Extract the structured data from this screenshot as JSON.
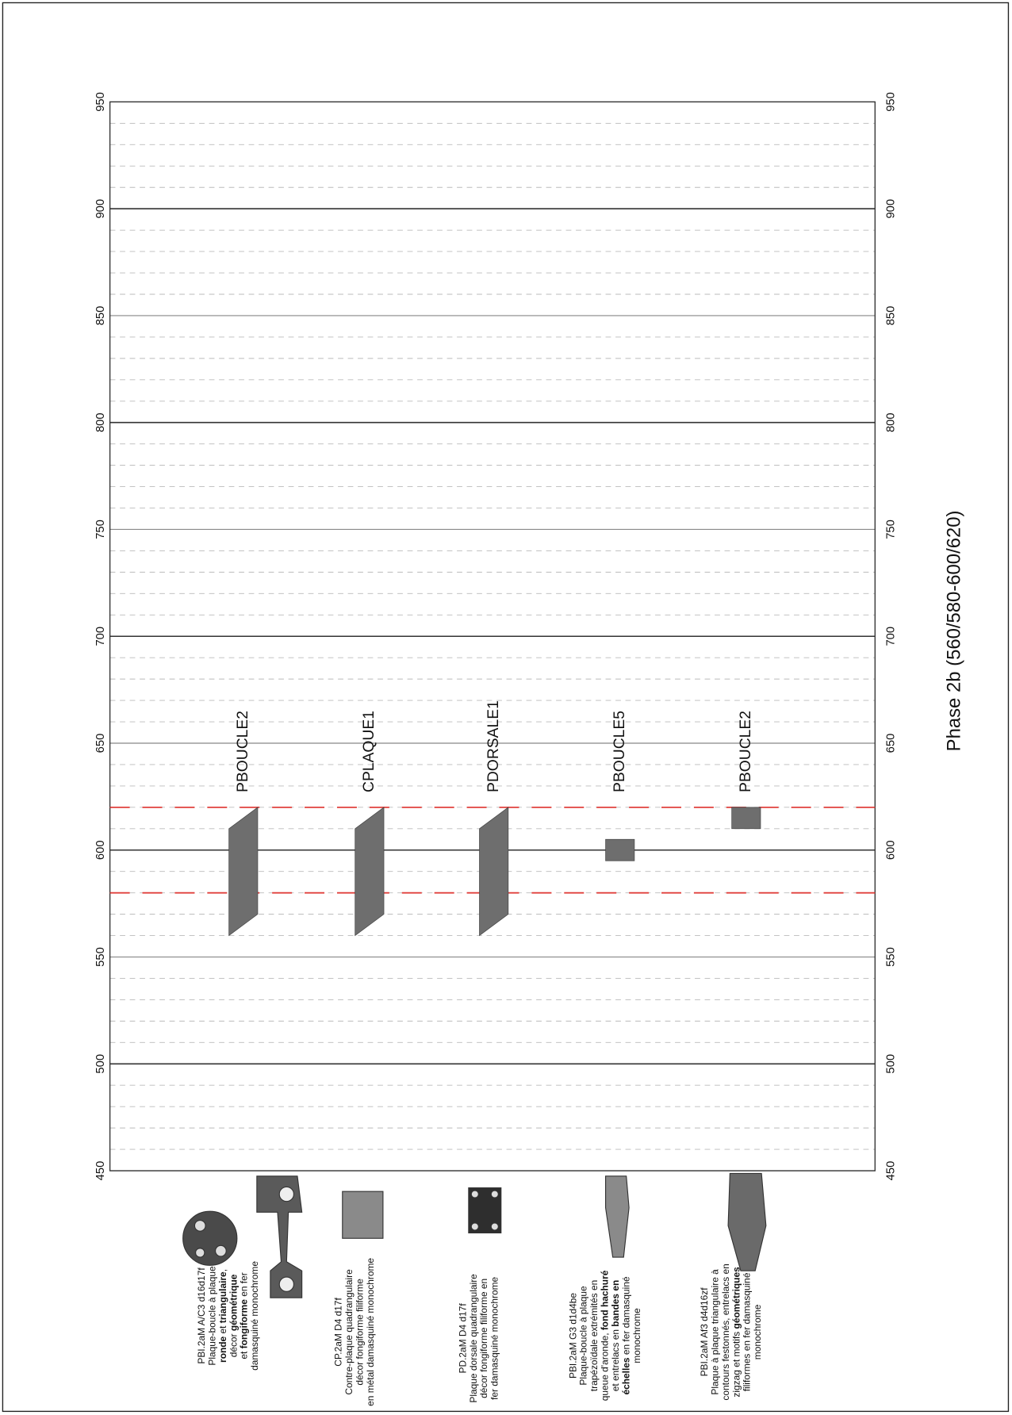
{
  "chart_data": {
    "type": "range",
    "title": "Phase 2b (560/580-600/620)",
    "ylim": [
      450,
      950
    ],
    "yticks": [
      450,
      500,
      550,
      600,
      650,
      700,
      750,
      800,
      850,
      900,
      950
    ],
    "major_step": 100,
    "minor_step": 10,
    "color": "#6e6e6e",
    "reference_lines": [
      {
        "value": 580,
        "color": "#e0403c"
      },
      {
        "value": 620,
        "color": "#e0403c"
      }
    ],
    "items": [
      {
        "name": "PBOUCLE2",
        "low": [
          560,
          570
        ],
        "high": [
          610,
          620
        ],
        "description": [
          [
            "PBI.2aM A/C3 d16d17f"
          ],
          [
            "Plaque-boucle à plaque"
          ],
          [
            {
              "text": "ronde",
              "bold": true
            },
            " et ",
            {
              "text": "triangulaire",
              "bold": true
            },
            ","
          ],
          [
            "décor ",
            {
              "text": "géométrique",
              "bold": true
            }
          ],
          [
            "et ",
            {
              "text": "fongiforme",
              "bold": true
            },
            " en fer"
          ],
          [
            "damasquiné monochrome"
          ]
        ]
      },
      {
        "name": "CPLAQUE1",
        "low": [
          560,
          570
        ],
        "high": [
          610,
          620
        ],
        "description": [
          [
            "CP.2aM D4 d17f"
          ],
          [
            "Contre-plaque quadrangulaire"
          ],
          [
            "décor fongiforme filiforme"
          ],
          [
            "en métal damasquiné monochrome"
          ]
        ]
      },
      {
        "name": "PDORSALE1",
        "low": [
          560,
          570
        ],
        "high": [
          610,
          620
        ],
        "description": [
          [
            "PD.2aM D4 d17f"
          ],
          [
            "Plaque dorsale quadrangulaire"
          ],
          [
            "décor fongiforme filiforme en"
          ],
          [
            "fer damasquiné monochrome"
          ]
        ]
      },
      {
        "name": "PBOUCLE5",
        "low": [
          595,
          595
        ],
        "high": [
          605,
          605
        ],
        "description": [
          [
            "PBI.2aM G3 d1d4be"
          ],
          [
            "Plaque-boucle à plaque"
          ],
          [
            "trapézoïdale extrémités en"
          ],
          [
            "queue d'aronde, ",
            {
              "text": "fond hachuré",
              "bold": true
            }
          ],
          [
            "et entrelacs en ",
            {
              "text": "bandes en",
              "bold": true
            }
          ],
          [
            {
              "text": "échelles",
              "bold": true
            },
            " en fer damasquiné"
          ],
          [
            "monochrome"
          ]
        ]
      },
      {
        "name": "PBOUCLE2",
        "low": [
          610,
          610
        ],
        "high": [
          620,
          620
        ],
        "description": [
          [
            "PBI.2aM Af3 d4d16zf"
          ],
          [
            "Plaque à plaque triangulaire à"
          ],
          [
            "contours festonnés, entrelacs en"
          ],
          [
            "zigzag et motifs ",
            {
              "text": "géométriques",
              "bold": true
            }
          ],
          [
            "filiformes en fer damasquiné"
          ],
          [
            "monochrome"
          ]
        ]
      }
    ]
  }
}
